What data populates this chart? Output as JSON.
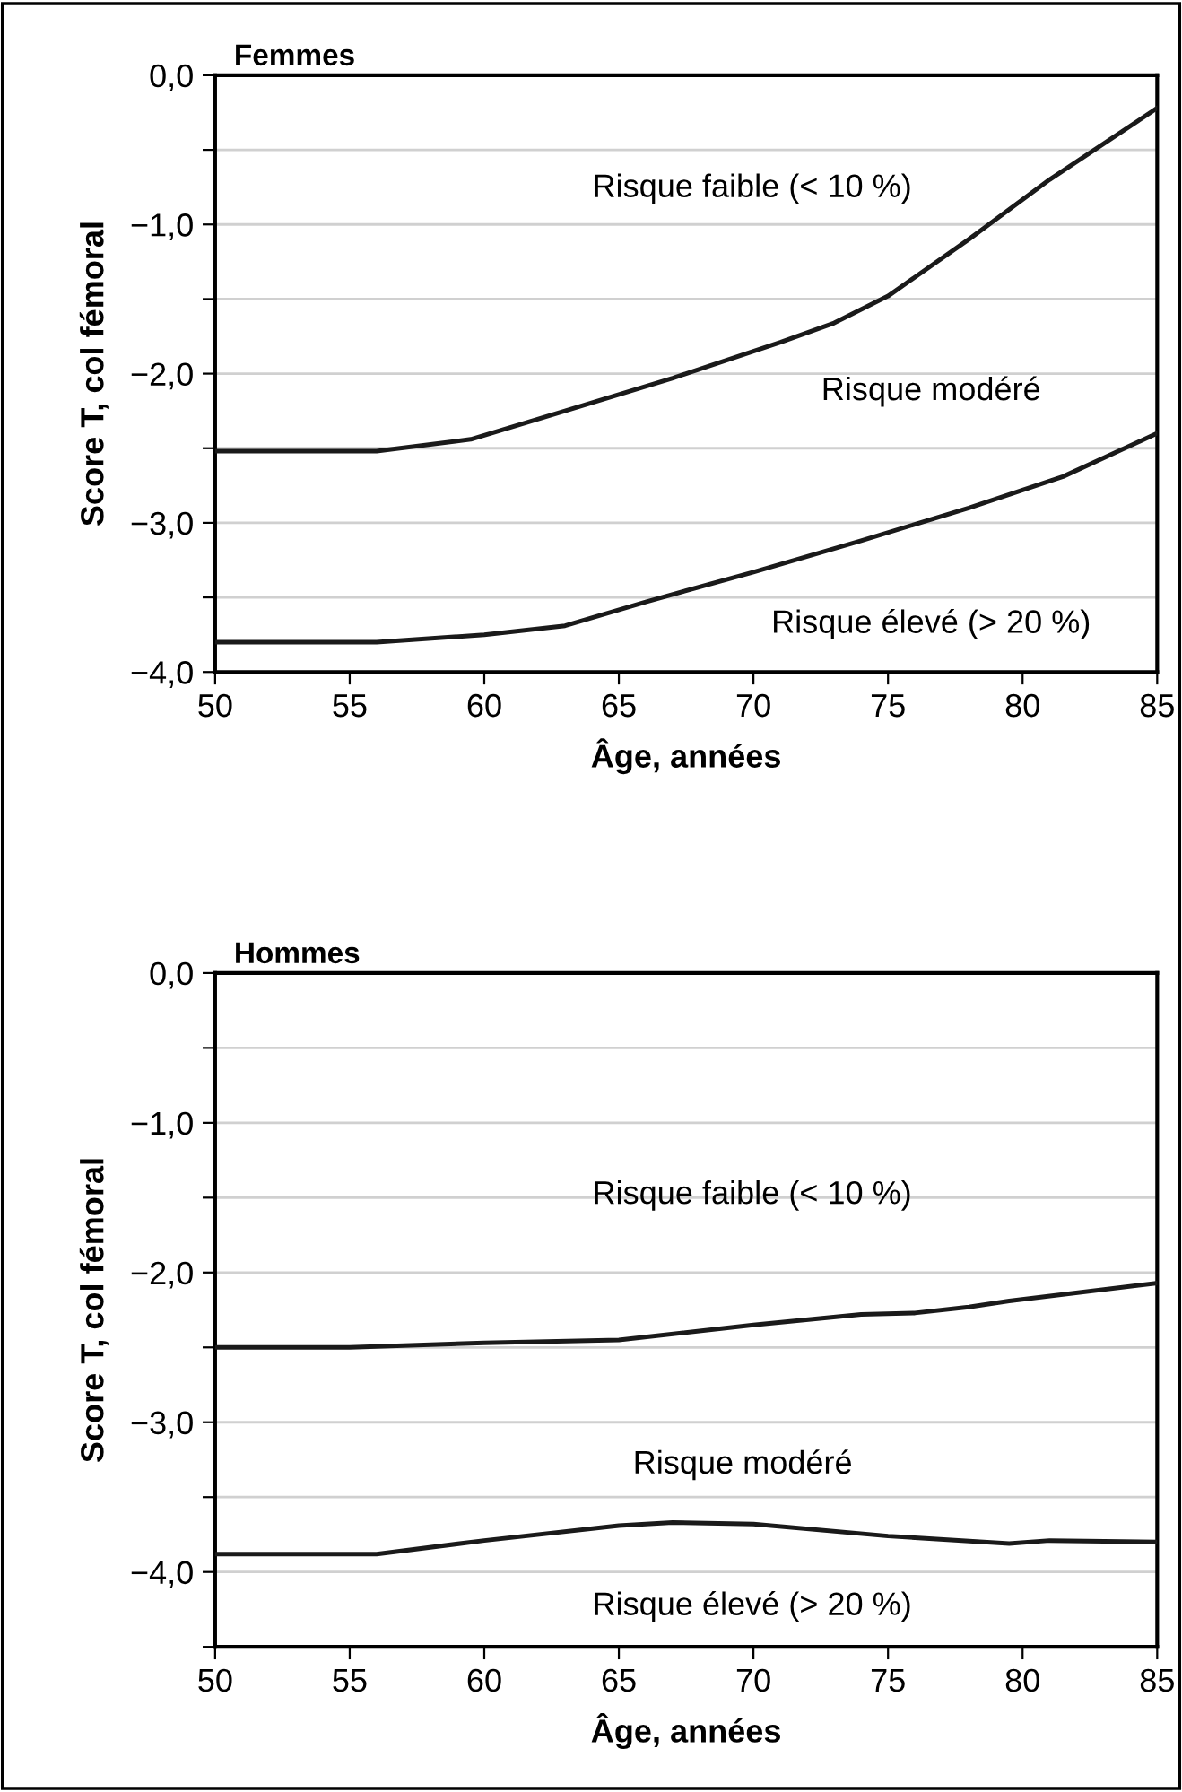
{
  "chart_data": [
    {
      "type": "line",
      "title": "Femmes",
      "xlabel": "Âge, années",
      "ylabel": "Score T, col fémoral",
      "xlim": [
        50,
        85
      ],
      "xticks": [
        50,
        55,
        60,
        65,
        70,
        75,
        80,
        85
      ],
      "ylim": [
        -4,
        0
      ],
      "yticks": [
        {
          "value": 0,
          "label": "0,0"
        },
        {
          "value": -0.5,
          "label": null
        },
        {
          "value": -1,
          "label": "−1,0"
        },
        {
          "value": -1.5,
          "label": null
        },
        {
          "value": -2,
          "label": "−2,0"
        },
        {
          "value": -2.5,
          "label": null
        },
        {
          "value": -3,
          "label": "−3,0"
        },
        {
          "value": -3.5,
          "label": null
        },
        {
          "value": -4,
          "label": "−4,0"
        }
      ],
      "grid": "y",
      "marker": "none",
      "line_style": "solid",
      "series": [
        {
          "color": "#1a1a1a",
          "x": [
            50,
            56,
            59.5,
            63,
            67,
            71,
            73,
            75,
            78,
            81,
            85
          ],
          "values": [
            -2.52,
            -2.52,
            -2.44,
            -2.25,
            -2.03,
            -1.79,
            -1.66,
            -1.48,
            -1.1,
            -0.7,
            -0.22
          ]
        },
        {
          "color": "#1a1a1a",
          "x": [
            50,
            56,
            60,
            63,
            66,
            70,
            74,
            78,
            81.5,
            85
          ],
          "values": [
            -3.8,
            -3.8,
            -3.75,
            -3.69,
            -3.53,
            -3.33,
            -3.12,
            -2.9,
            -2.69,
            -2.4
          ]
        }
      ],
      "annotations": [
        "Risque faible (< 10 %)",
        "Risque modéré",
        "Risque élevé (> 20 %)"
      ]
    },
    {
      "type": "line",
      "title": "Hommes",
      "xlabel": "Âge, années",
      "ylabel": "Score T, col fémoral",
      "xlim": [
        50,
        85
      ],
      "xticks": [
        50,
        55,
        60,
        65,
        70,
        75,
        80,
        85
      ],
      "ylim": [
        -4.5,
        0
      ],
      "yticks": [
        {
          "value": 0,
          "label": "0,0"
        },
        {
          "value": -0.5,
          "label": null
        },
        {
          "value": -1,
          "label": "−1,0"
        },
        {
          "value": -1.5,
          "label": null
        },
        {
          "value": -2,
          "label": "−2,0"
        },
        {
          "value": -2.5,
          "label": null
        },
        {
          "value": -3,
          "label": "−3,0"
        },
        {
          "value": -3.5,
          "label": null
        },
        {
          "value": -4,
          "label": "−4,0"
        },
        {
          "value": -4.5,
          "label": null
        }
      ],
      "grid": "y",
      "marker": "none",
      "line_style": "solid",
      "series": [
        {
          "color": "#1a1a1a",
          "x": [
            50,
            55,
            60,
            65,
            70,
            74,
            76,
            78,
            79.5,
            85
          ],
          "values": [
            -2.5,
            -2.5,
            -2.47,
            -2.45,
            -2.35,
            -2.28,
            -2.27,
            -2.23,
            -2.19,
            -2.07
          ]
        },
        {
          "color": "#1a1a1a",
          "x": [
            50,
            56,
            60,
            65,
            67,
            70,
            75,
            79.5,
            81,
            85
          ],
          "values": [
            -3.88,
            -3.88,
            -3.79,
            -3.69,
            -3.67,
            -3.68,
            -3.76,
            -3.81,
            -3.79,
            -3.8
          ]
        }
      ],
      "annotations": [
        "Risque faible (< 10 %)",
        "Risque modéré",
        "Risque élevé (> 20 %)"
      ]
    }
  ]
}
